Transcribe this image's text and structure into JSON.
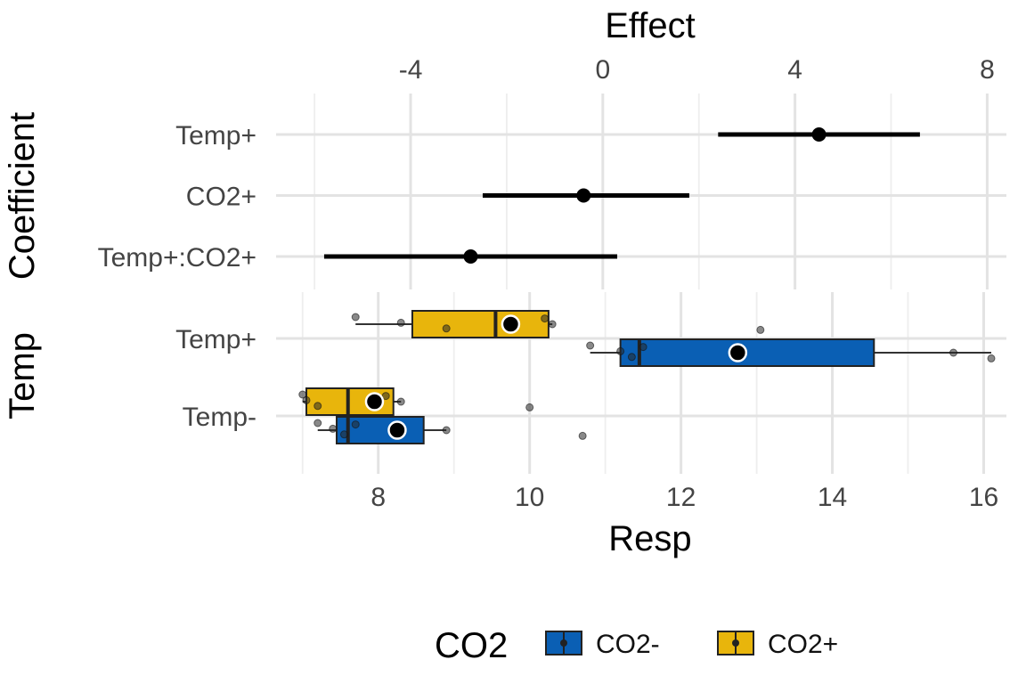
{
  "chart_data": [
    {
      "type": "errorbar",
      "title": "",
      "xlabel": "Effect",
      "ylabel": "Coefficient",
      "xlim": [
        -6.8,
        8.4
      ],
      "xticks": [
        -4,
        0,
        4,
        8
      ],
      "xtick_labels": [
        "-4",
        "0",
        "4",
        "8"
      ],
      "categories": [
        "Temp+",
        "CO2+",
        "Temp+:CO2+"
      ],
      "estimates": [
        4.5,
        -0.4,
        -2.75
      ],
      "lower": [
        2.4,
        -2.5,
        -5.8
      ],
      "upper": [
        6.6,
        1.8,
        0.3
      ],
      "grid": true
    },
    {
      "type": "boxplot",
      "title": "",
      "xlabel": "Resp",
      "ylabel": "Temp",
      "xlim": [
        6.65,
        16.3
      ],
      "xticks": [
        8,
        10,
        12,
        14,
        16
      ],
      "xtick_labels": [
        "8",
        "10",
        "12",
        "14",
        "16"
      ],
      "categories": [
        "Temp+",
        "Temp-"
      ],
      "legend": {
        "title": "CO2",
        "position": "bottom",
        "entries": [
          {
            "label": "CO2-",
            "color": "#0a5fb4"
          },
          {
            "label": "CO2+",
            "color": "#e8b50c"
          }
        ]
      },
      "series": [
        {
          "name": "CO2-",
          "color": "#0a5fb4",
          "boxes": [
            {
              "category": "Temp+",
              "min": 10.8,
              "q1": 11.2,
              "median": 11.45,
              "q3": 14.55,
              "max": 16.1,
              "mean": 12.75,
              "points": [
                10.8,
                11.2,
                11.35,
                11.5,
                15.6,
                16.1
              ]
            },
            {
              "category": "Temp-",
              "min": 7.2,
              "q1": 7.45,
              "median": 7.6,
              "q3": 8.6,
              "max": 8.9,
              "mean": 8.25,
              "points": [
                7.2,
                7.4,
                7.55,
                7.7,
                8.9,
                10.7
              ]
            }
          ]
        },
        {
          "name": "CO2+",
          "color": "#e8b50c",
          "boxes": [
            {
              "category": "Temp+",
              "min": 7.7,
              "q1": 8.45,
              "median": 9.55,
              "q3": 10.25,
              "max": 10.3,
              "mean": 9.75,
              "points": [
                7.7,
                8.3,
                8.9,
                10.2,
                10.3,
                13.05
              ]
            },
            {
              "category": "Temp-",
              "min": 7.0,
              "q1": 7.05,
              "median": 7.6,
              "q3": 8.2,
              "max": 8.3,
              "mean": 7.95,
              "points": [
                7.0,
                7.05,
                7.2,
                8.1,
                8.3,
                10.0
              ]
            }
          ]
        }
      ]
    }
  ]
}
